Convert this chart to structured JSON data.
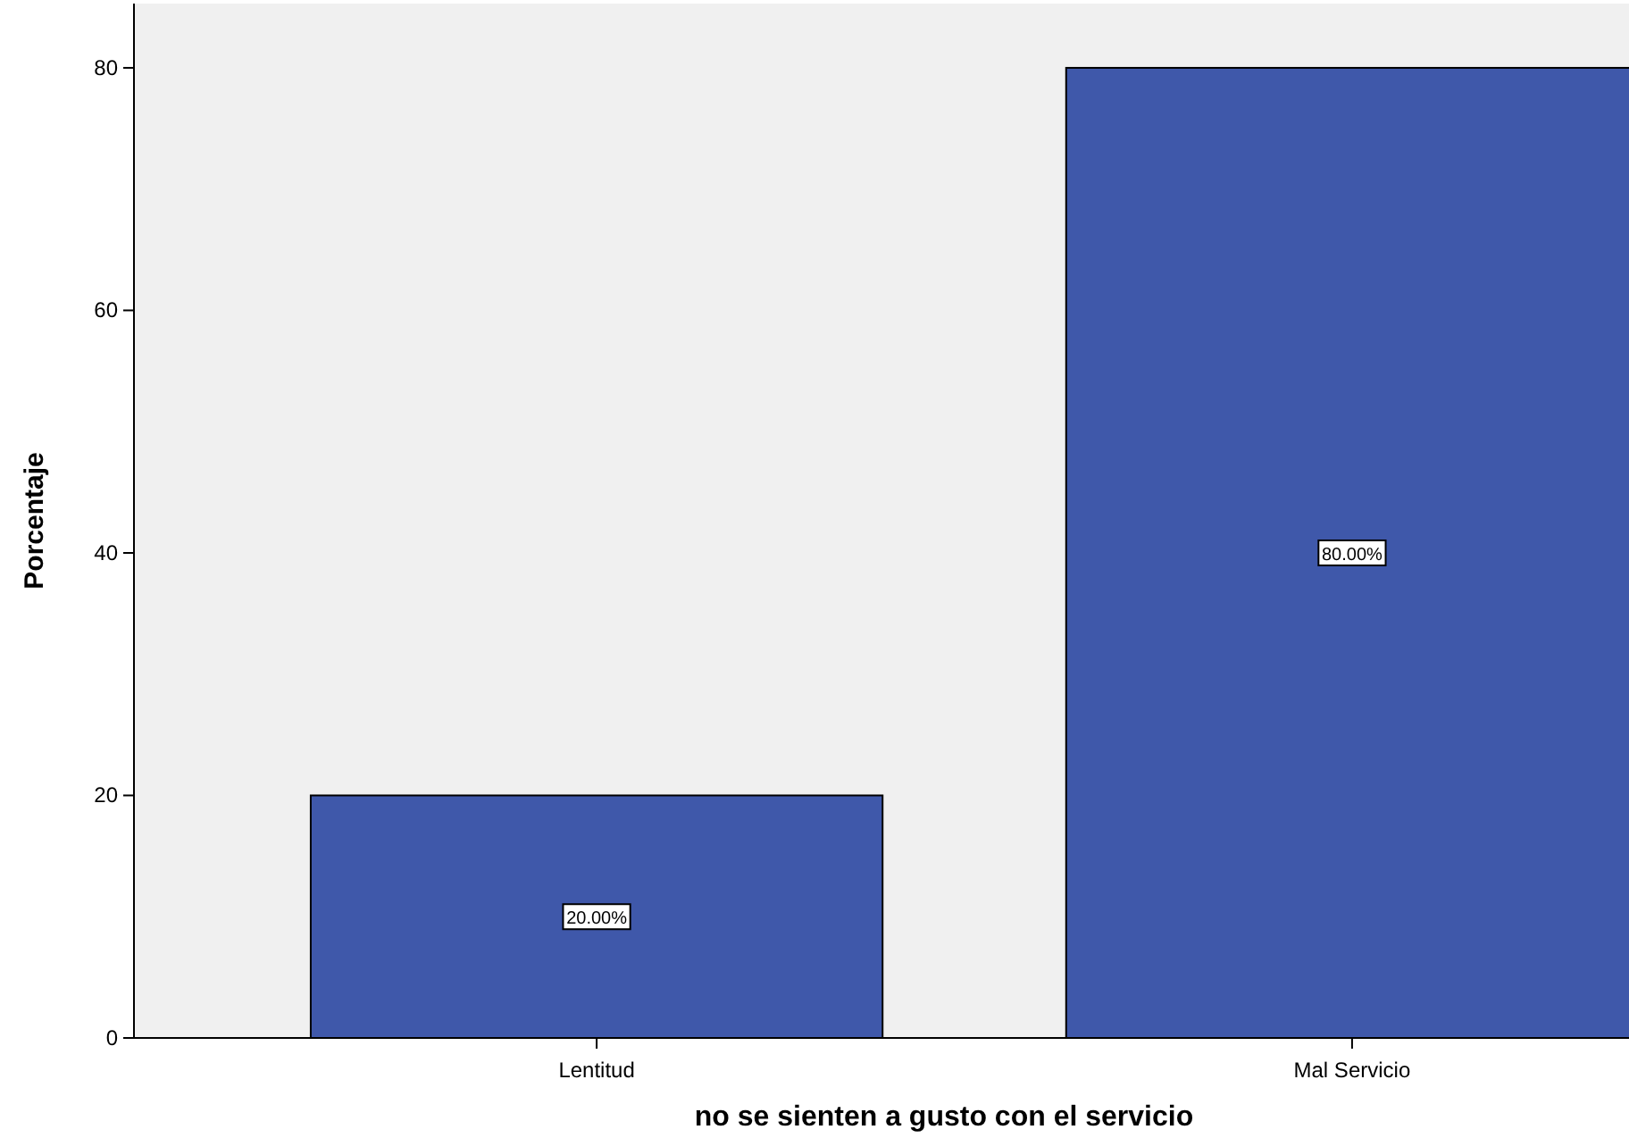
{
  "chart_data": {
    "type": "bar",
    "xlabel": "no se sienten a gusto con el servicio",
    "ylabel": "Porcentaje",
    "categories": [
      "Lentitud",
      "Mal Servicio"
    ],
    "values": [
      20,
      80
    ],
    "color": "#3f58aa",
    "value_labels": [
      "20.00%",
      "80.00%"
    ],
    "ylim": [
      0,
      85.3
    ],
    "yticks": [
      0,
      20,
      40,
      60,
      80
    ],
    "grid": false
  }
}
